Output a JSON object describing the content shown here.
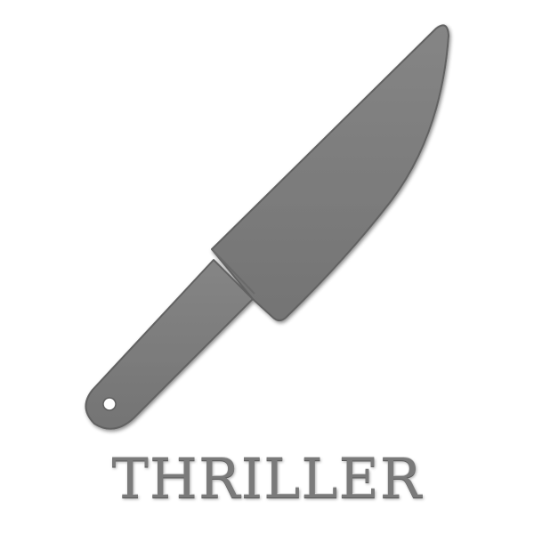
{
  "label": {
    "text": "THRILLER"
  },
  "icon": {
    "name": "knife-icon",
    "fill": "#7b7b7b",
    "edge": "#5e5e5e"
  },
  "background": "#ffffff"
}
